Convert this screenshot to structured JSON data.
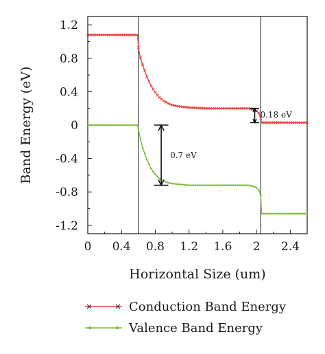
{
  "chart_data": {
    "type": "line",
    "title": "",
    "xlabel": "Horizontal Size (um)",
    "ylabel": "Band Energy (eV)",
    "xlim": [
      0,
      2.6
    ],
    "ylim": [
      -1.3,
      1.3
    ],
    "x_ticks": [
      0,
      0.4,
      0.8,
      1.2,
      1.6,
      2.0,
      2.4
    ],
    "x_tick_labels": [
      "0",
      "0.4",
      "0.8",
      "1.2",
      "1.6",
      "2",
      "2.4"
    ],
    "y_ticks": [
      1.2,
      0.8,
      0.4,
      0,
      -0.4,
      -0.8,
      -1.2
    ],
    "y_tick_labels": [
      "1.2",
      "0.8",
      "0.4",
      "0",
      "-0.4",
      "-0.8",
      "-1.2"
    ],
    "grid": false,
    "legend_position": "bottom",
    "vertical_lines": [
      0.6,
      2.05
    ],
    "series": [
      {
        "name": "Conduction Band Energy",
        "color": "#e8413c",
        "marker": "x",
        "x": [
          0,
          0.1,
          0.2,
          0.3,
          0.4,
          0.5,
          0.59,
          0.6,
          0.62,
          0.65,
          0.7,
          0.75,
          0.8,
          0.85,
          0.9,
          0.95,
          1.0,
          1.1,
          1.2,
          1.4,
          1.6,
          1.8,
          1.9,
          1.95,
          2.0,
          2.03,
          2.05,
          2.06,
          2.2,
          2.4,
          2.6
        ],
        "y": [
          1.08,
          1.08,
          1.08,
          1.08,
          1.08,
          1.08,
          1.08,
          0.93,
          0.82,
          0.72,
          0.58,
          0.47,
          0.39,
          0.33,
          0.29,
          0.26,
          0.24,
          0.22,
          0.21,
          0.2,
          0.2,
          0.2,
          0.2,
          0.19,
          0.17,
          0.14,
          0.08,
          0.03,
          0.03,
          0.03,
          0.03
        ]
      },
      {
        "name": "Valence Band Energy",
        "color": "#7dbb3a",
        "marker": "dot",
        "x": [
          0,
          0.1,
          0.2,
          0.3,
          0.4,
          0.5,
          0.59,
          0.6,
          0.62,
          0.65,
          0.7,
          0.75,
          0.8,
          0.85,
          0.9,
          0.95,
          1.0,
          1.1,
          1.2,
          1.4,
          1.6,
          1.8,
          1.9,
          1.95,
          2.0,
          2.03,
          2.05,
          2.06,
          2.2,
          2.4,
          2.6
        ],
        "y": [
          0,
          0,
          0,
          0,
          0,
          0,
          0,
          -0.05,
          -0.15,
          -0.27,
          -0.41,
          -0.52,
          -0.59,
          -0.64,
          -0.67,
          -0.69,
          -0.7,
          -0.71,
          -0.72,
          -0.72,
          -0.72,
          -0.72,
          -0.72,
          -0.73,
          -0.75,
          -0.78,
          -0.84,
          -1.06,
          -1.06,
          -1.06,
          -1.06
        ]
      }
    ],
    "annotations": [
      {
        "label": "0.7 eV",
        "x": 1.0,
        "y_from": 0,
        "y_to": -0.72
      },
      {
        "label": "0.18 eV",
        "x": 2.1,
        "y_from": 0.2,
        "y_to": 0.03
      }
    ]
  }
}
